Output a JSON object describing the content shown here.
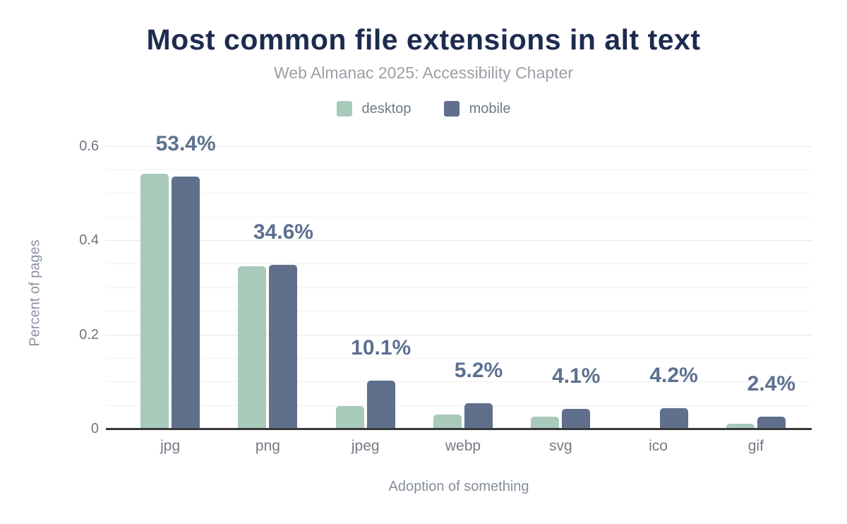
{
  "chart_data": {
    "type": "bar",
    "title": "Most common file extensions in alt text",
    "subtitle": "Web Almanac 2025: Accessibility Chapter",
    "xlabel": "Adoption of something",
    "ylabel": "Percent of pages",
    "categories": [
      "jpg",
      "png",
      "jpeg",
      "webp",
      "svg",
      "ico",
      "gif"
    ],
    "series": [
      {
        "name": "desktop",
        "color": "#a7cabb",
        "values": [
          0.54,
          0.343,
          0.047,
          0.028,
          0.024,
          0,
          0.009
        ]
      },
      {
        "name": "mobile",
        "color": "#5f6f8c",
        "values": [
          0.534,
          0.346,
          0.101,
          0.052,
          0.041,
          0.042,
          0.024
        ]
      }
    ],
    "value_labels": [
      "53.4%",
      "34.6%",
      "10.1%",
      "5.2%",
      "4.1%",
      "4.2%",
      "2.4%"
    ],
    "value_labels_series": "mobile",
    "yticks": [
      "0",
      "0.2",
      "0.4",
      "0.6"
    ],
    "ytick_values": [
      0,
      0.2,
      0.4,
      0.6
    ],
    "ylim": [
      0,
      0.6
    ],
    "grid": "on",
    "grid_minor_step": 0.05,
    "legend_position": "top"
  },
  "colors": {
    "title": "#1d2b4f",
    "subtitle": "#9aa0a6",
    "value_label": "#5d7090",
    "axis_line": "#383838",
    "grid_minor": "#f1f1f1",
    "grid_major": "#e7e7e7",
    "tick_label": "#71767e",
    "axis_title": "#8b93a0",
    "desktop": "#a7cabb",
    "mobile": "#5f6f8c"
  }
}
